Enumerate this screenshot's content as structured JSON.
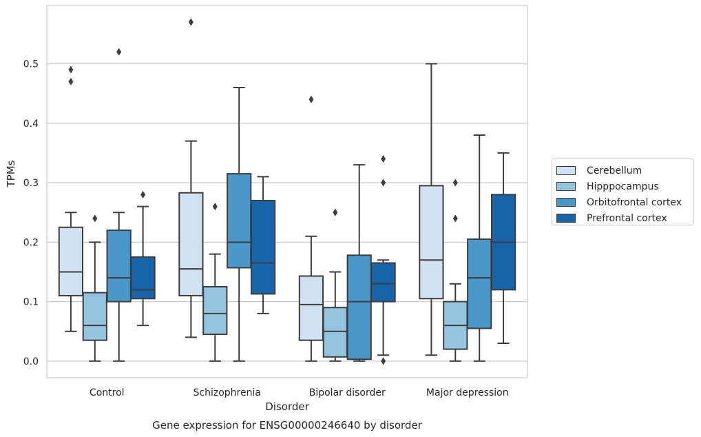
{
  "chart_data": {
    "type": "box",
    "title": "Gene expression for ENSG00000246640 by disorder",
    "xlabel": "Disorder",
    "ylabel": "TPMs",
    "ylim": [
      -0.028,
      0.598
    ],
    "yticks": [
      "0.0",
      "0.1",
      "0.2",
      "0.3",
      "0.4",
      "0.5"
    ],
    "ytick_values": [
      0.0,
      0.1,
      0.2,
      0.3,
      0.4,
      0.5
    ],
    "grid": "horizontal",
    "legend_position": "center-right",
    "categories": [
      "Control",
      "Schizophrenia",
      "Bipolar disorder",
      "Major depression"
    ],
    "series": [
      {
        "name": "Cerebellum",
        "color": "#d0e1f2",
        "boxes": [
          {
            "whislo": 0.05,
            "q1": 0.11,
            "med": 0.15,
            "q3": 0.225,
            "whishi": 0.25,
            "fliers": [
              0.47,
              0.49
            ]
          },
          {
            "whislo": 0.04,
            "q1": 0.11,
            "med": 0.155,
            "q3": 0.283,
            "whishi": 0.37,
            "fliers": [
              0.57
            ]
          },
          {
            "whislo": 0.0,
            "q1": 0.035,
            "med": 0.095,
            "q3": 0.143,
            "whishi": 0.21,
            "fliers": [
              0.44
            ]
          },
          {
            "whislo": 0.01,
            "q1": 0.105,
            "med": 0.17,
            "q3": 0.295,
            "whishi": 0.5,
            "fliers": []
          }
        ]
      },
      {
        "name": "Hipppocampus",
        "color": "#94c4df",
        "boxes": [
          {
            "whislo": 0.0,
            "q1": 0.035,
            "med": 0.06,
            "q3": 0.115,
            "whishi": 0.2,
            "fliers": [
              0.24
            ]
          },
          {
            "whislo": 0.0,
            "q1": 0.045,
            "med": 0.08,
            "q3": 0.125,
            "whishi": 0.18,
            "fliers": [
              0.26
            ]
          },
          {
            "whislo": 0.0,
            "q1": 0.007,
            "med": 0.05,
            "q3": 0.09,
            "whishi": 0.15,
            "fliers": [
              0.25
            ]
          },
          {
            "whislo": 0.0,
            "q1": 0.02,
            "med": 0.06,
            "q3": 0.1,
            "whishi": 0.13,
            "fliers": [
              0.24,
              0.3
            ]
          }
        ]
      },
      {
        "name": "Orbitofrontal cortex",
        "color": "#4a98c9",
        "boxes": [
          {
            "whislo": 0.0,
            "q1": 0.1,
            "med": 0.14,
            "q3": 0.22,
            "whishi": 0.25,
            "fliers": [
              0.52
            ]
          },
          {
            "whislo": 0.0,
            "q1": 0.157,
            "med": 0.2,
            "q3": 0.315,
            "whishi": 0.46,
            "fliers": []
          },
          {
            "whislo": 0.0,
            "q1": 0.003,
            "med": 0.1,
            "q3": 0.178,
            "whishi": 0.33,
            "fliers": []
          },
          {
            "whislo": 0.0,
            "q1": 0.055,
            "med": 0.14,
            "q3": 0.205,
            "whishi": 0.38,
            "fliers": []
          }
        ]
      },
      {
        "name": "Prefrontal cortex",
        "color": "#1764ab",
        "boxes": [
          {
            "whislo": 0.06,
            "q1": 0.105,
            "med": 0.12,
            "q3": 0.175,
            "whishi": 0.26,
            "fliers": [
              0.28
            ]
          },
          {
            "whislo": 0.08,
            "q1": 0.113,
            "med": 0.165,
            "q3": 0.27,
            "whishi": 0.31,
            "fliers": []
          },
          {
            "whislo": 0.01,
            "q1": 0.1,
            "med": 0.13,
            "q3": 0.165,
            "whishi": 0.17,
            "fliers": [
              0.0,
              0.3,
              0.34
            ]
          },
          {
            "whislo": 0.03,
            "q1": 0.12,
            "med": 0.2,
            "q3": 0.28,
            "whishi": 0.35,
            "fliers": []
          }
        ]
      }
    ]
  }
}
